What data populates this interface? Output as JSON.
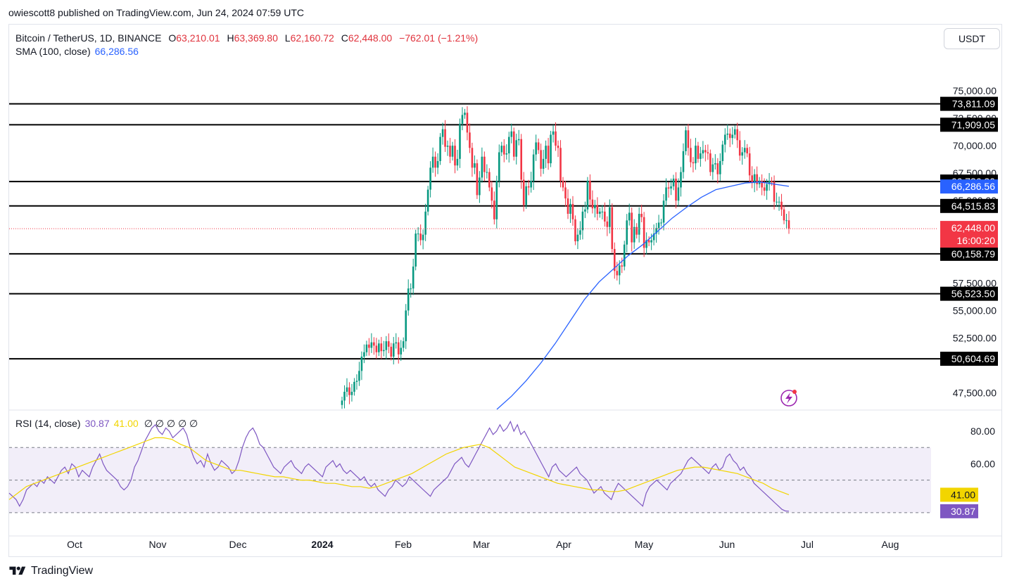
{
  "publisher_line": "owiescott8 published on TradingView.com, Jun 24, 2024 07:59 UTC",
  "symbol": "Bitcoin / TetherUS, 1D, BINANCE",
  "ohlc": [
    {
      "k": "O",
      "v": "63,210.01"
    },
    {
      "k": "H",
      "v": "63,369.80"
    },
    {
      "k": "L",
      "v": "62,160.72"
    },
    {
      "k": "C",
      "v": "62,448.00"
    }
  ],
  "change": "−762.01 (−1.21%)",
  "sma_label": "SMA (100, close)",
  "sma_value": "66,286.56",
  "currency_button": "USDT",
  "rsi_label": "RSI (14, close)",
  "rsi_value": "30.87",
  "rsi_ma_value": "41.00",
  "rsi_extra": "∅ ∅ ∅ ∅ ∅",
  "footer_brand": "TradingView",
  "colors": {
    "up": "#089981",
    "down": "#f23645",
    "sma": "#2962ff",
    "rsi": "#7e57c2",
    "rsi_ma": "#f2d500",
    "level": "#000000"
  },
  "chart_data": [
    {
      "type": "candlestick",
      "ylim": [
        46000,
        77500
      ],
      "price_ticks": [
        "75,000.00",
        "72,500.00",
        "70,000.00",
        "67,500.00",
        "65,000.00",
        "57,500.00",
        "55,000.00",
        "52,500.00",
        "47,500.00"
      ],
      "price_tick_values": [
        75000,
        72500,
        70000,
        67500,
        65000,
        57500,
        55000,
        52500,
        47500
      ],
      "x_ticks": [
        "Oct",
        "Nov",
        "Dec",
        "2024",
        "Feb",
        "Mar",
        "Apr",
        "May",
        "Jun",
        "Jul",
        "Aug"
      ],
      "horizontal_levels": [
        73811.09,
        71909.05,
        66736.2,
        64515.83,
        60158.79,
        56523.5,
        50604.69
      ],
      "level_labels": [
        "73,811.09",
        "71,909.05",
        "66,736.20",
        "64,515.83",
        "60,158.79",
        "56,523.50",
        "50,604.69"
      ],
      "sma_label_value": "66,286.56",
      "last_price_label": "62,448.00",
      "countdown": "16:00:20",
      "last_price": 62448,
      "closes": [
        46800,
        47600,
        48000,
        47300,
        47600,
        48500,
        48600,
        49500,
        50800,
        51200,
        51900,
        51600,
        52100,
        51800,
        51200,
        52000,
        51300,
        51400,
        52200,
        51700,
        50800,
        52000,
        52100,
        51000,
        51600,
        52200,
        55000,
        57000,
        57000,
        59000,
        62000,
        62000,
        61400,
        61900,
        64000,
        66000,
        68000,
        69000,
        68000,
        68600,
        70800,
        71500,
        69900,
        70000,
        69000,
        70000,
        68200,
        68800,
        72000,
        72800,
        73000,
        71200,
        69800,
        68000,
        68400,
        65500,
        67100,
        69000,
        67600,
        67600,
        66200,
        65000,
        63300,
        66800,
        69400,
        70000,
        69200,
        69300,
        70800,
        71300,
        69000,
        70500,
        70600,
        66900,
        64600,
        66300,
        66200,
        66800,
        69200,
        70300,
        69600,
        67900,
        68800,
        70000,
        68400,
        71000,
        71300,
        70000,
        69800,
        66800,
        66200,
        65200,
        63800,
        64700,
        63300,
        61300,
        61900,
        62300,
        64000,
        64200,
        66800,
        65100,
        64300,
        64600,
        63800,
        64000,
        64000,
        63100,
        62600,
        64400,
        60600,
        58600,
        58200,
        59100,
        59000,
        61000,
        63200,
        63900,
        61200,
        62600,
        61900,
        63800,
        63500,
        60700,
        61400,
        61200,
        61400,
        62000,
        62500,
        63000,
        63000,
        65000,
        66200,
        66100,
        66300,
        67000,
        65000,
        66200,
        67600,
        69500,
        71400,
        69800,
        68500,
        68400,
        70000,
        68800,
        69300,
        69600,
        69400,
        69300,
        67600,
        68300,
        68400,
        67400,
        68600,
        70100,
        71000,
        71100,
        70700,
        71000,
        71500,
        70500,
        69100,
        69400,
        69800,
        69300,
        67300,
        66600,
        67400,
        66500,
        66800,
        66200,
        65900,
        66500,
        66800,
        66700,
        64900,
        64900,
        64900,
        64200,
        63200,
        63210,
        62448
      ],
      "sma_values_sampled": [
        46000,
        47200,
        48600,
        50200,
        52000,
        54000,
        56000,
        57600,
        58800,
        60000,
        61000,
        62200,
        63400,
        64400,
        65300,
        66000,
        66300,
        66600,
        66700,
        66500,
        66300
      ],
      "rsi": {
        "ylim": [
          20,
          90
        ],
        "ticks": [
          "80.00",
          "60.00"
        ],
        "tick_values": [
          80,
          60
        ],
        "upper_band": 70,
        "lower_band": 30,
        "mid": 50,
        "last_rsi": 30.87,
        "last_ma": 41.0,
        "values": [
          42,
          40,
          38,
          34,
          38,
          44,
          46,
          48,
          46,
          50,
          48,
          52,
          50,
          48,
          52,
          56,
          58,
          54,
          60,
          58,
          52,
          56,
          54,
          52,
          58,
          62,
          66,
          60,
          56,
          54,
          52,
          50,
          46,
          44,
          46,
          50,
          58,
          62,
          68,
          74,
          78,
          82,
          84,
          80,
          78,
          82,
          80,
          76,
          78,
          80,
          82,
          78,
          70,
          64,
          60,
          62,
          58,
          66,
          60,
          56,
          58,
          62,
          60,
          58,
          54,
          56,
          62,
          70,
          76,
          80,
          82,
          78,
          72,
          70,
          66,
          62,
          58,
          56,
          54,
          58,
          60,
          62,
          58,
          56,
          54,
          58,
          60,
          58,
          56,
          54,
          52,
          58,
          60,
          62,
          58,
          60,
          56,
          54,
          56,
          54,
          52,
          50,
          52,
          48,
          46,
          48,
          44,
          42,
          40,
          44,
          46,
          50,
          48,
          46,
          48,
          52,
          50,
          48,
          46,
          44,
          42,
          40,
          44,
          46,
          48,
          50,
          52,
          56,
          60,
          62,
          64,
          60,
          58,
          62,
          66,
          70,
          74,
          78,
          82,
          78,
          80,
          84,
          80,
          82,
          86,
          80,
          84,
          78,
          80,
          76,
          72,
          68,
          64,
          60,
          56,
          52,
          58,
          60,
          56,
          54,
          52,
          54,
          56,
          58,
          54,
          52,
          50,
          46,
          42,
          44,
          46,
          42,
          40,
          38,
          44,
          48,
          46,
          44,
          42,
          40,
          38,
          36,
          34,
          42,
          46,
          48,
          50,
          48,
          46,
          44,
          48,
          50,
          52,
          54,
          58,
          62,
          64,
          62,
          60,
          58,
          56,
          54,
          58,
          60,
          56,
          58,
          64,
          66,
          62,
          60,
          56,
          58,
          54,
          52,
          48,
          46,
          44,
          42,
          40,
          38,
          36,
          34,
          32,
          31,
          30.87
        ],
        "ma_sampled": [
          38,
          42,
          46,
          48,
          50,
          52,
          54,
          56,
          58,
          60,
          62,
          64,
          66,
          68,
          70,
          72,
          74,
          76,
          76,
          75,
          72,
          70,
          66,
          62,
          60,
          58,
          56,
          56,
          55,
          54,
          53,
          52,
          52,
          51,
          50,
          50,
          49,
          48,
          48,
          47,
          46,
          46,
          45,
          46,
          48,
          50,
          52,
          54,
          57,
          60,
          63,
          66,
          68,
          70,
          71,
          72,
          70,
          66,
          62,
          58,
          56,
          54,
          52,
          50,
          48,
          47,
          46,
          45,
          44,
          44,
          43,
          43,
          44,
          46,
          48,
          50,
          52,
          54,
          56,
          57,
          58,
          58,
          57,
          56,
          55,
          54,
          52,
          50,
          48,
          45,
          43,
          41
        ]
      }
    }
  ]
}
